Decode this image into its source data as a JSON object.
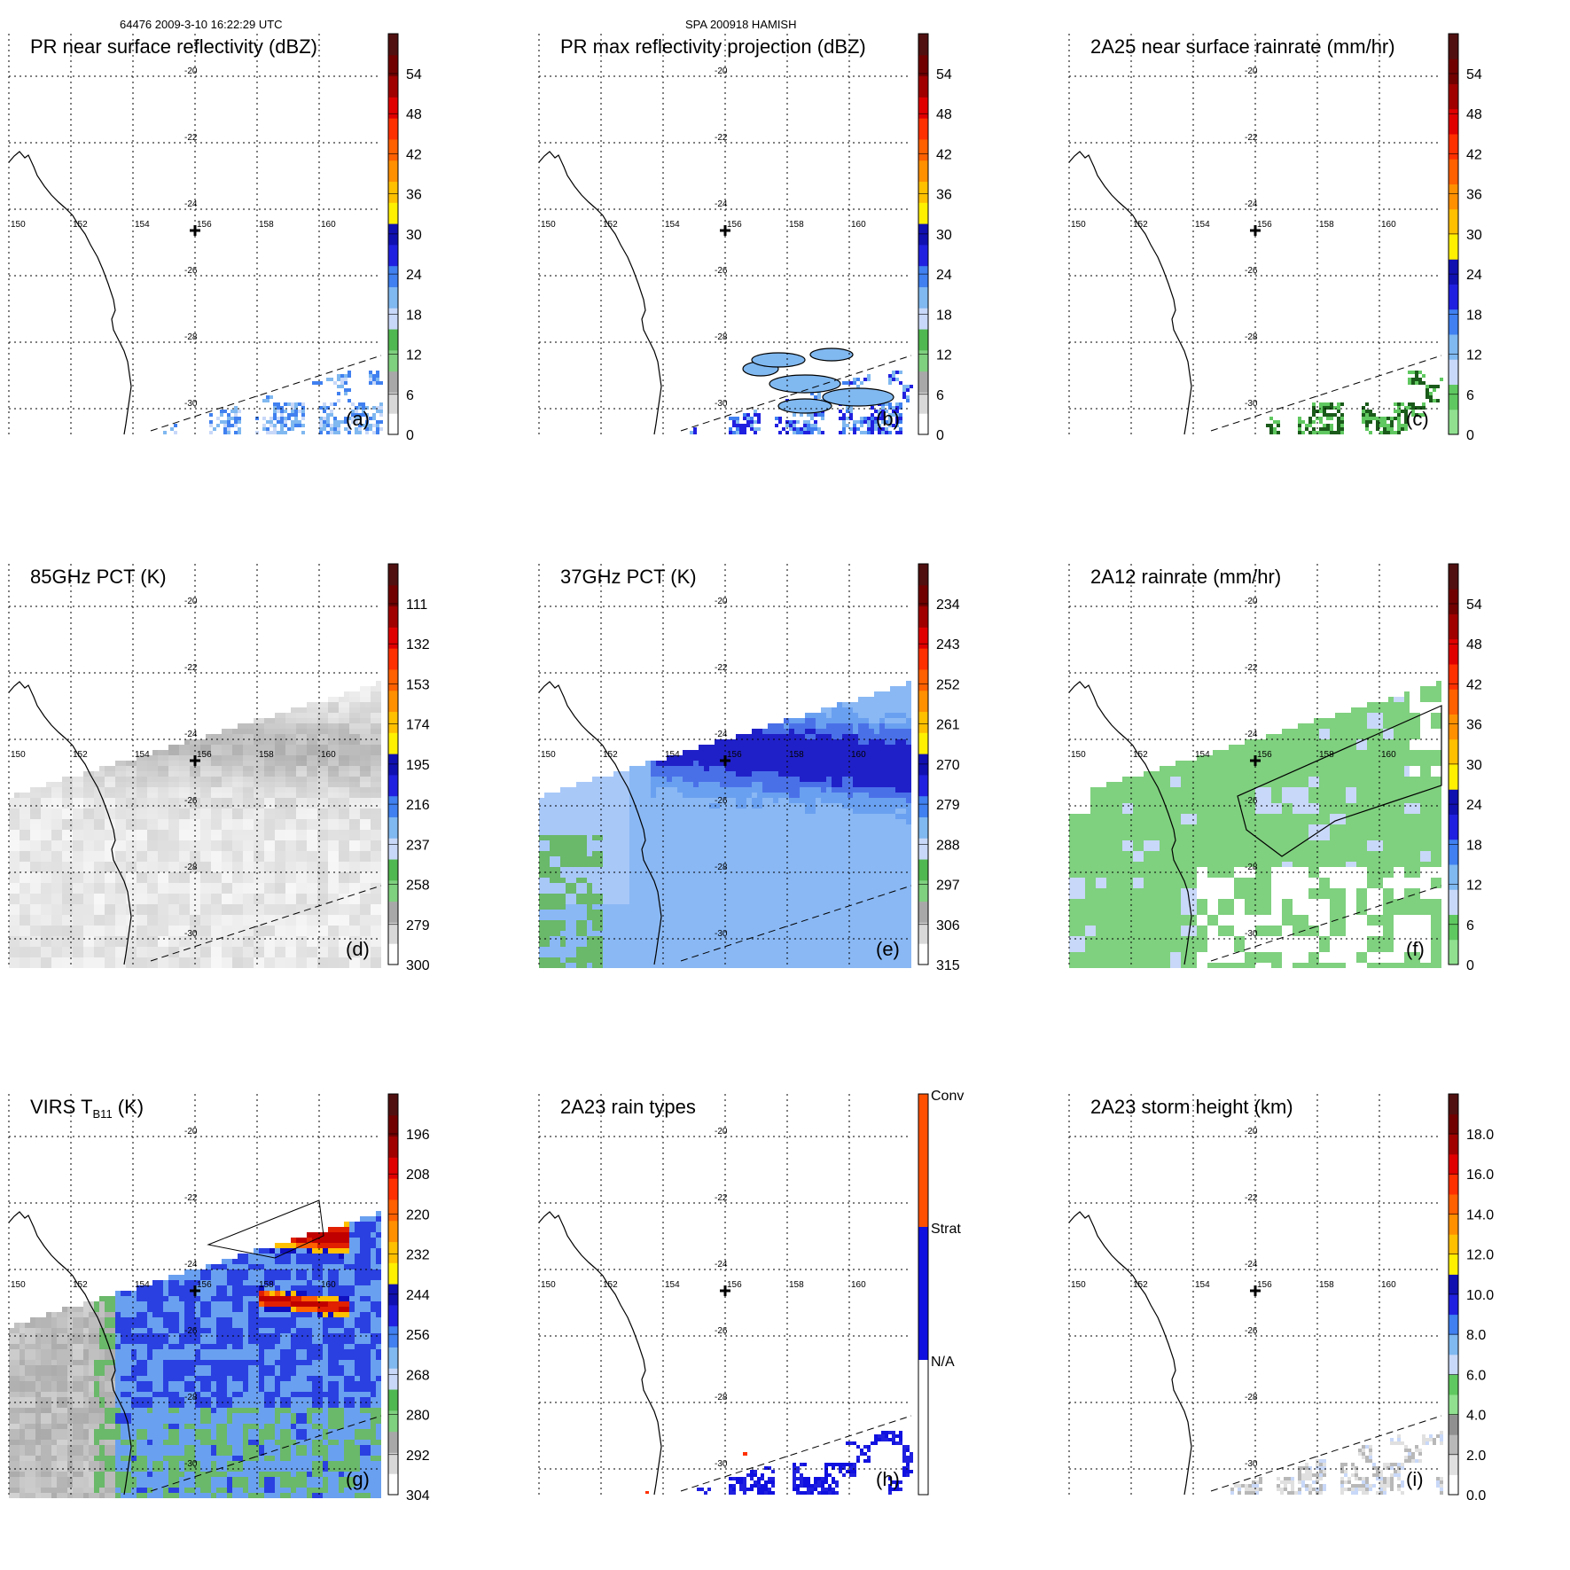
{
  "header": {
    "left": "64476 2009-3-10 16:22:29 UTC",
    "center": "SPA 200918 HAMISH"
  },
  "chart_data": [
    {
      "type": "heatmap",
      "id": "a",
      "title": "PR near surface reflectivity (dBZ)",
      "panel_label": "(a)",
      "colorbar_ticks": [
        "54",
        "48",
        "42",
        "36",
        "30",
        "24",
        "18",
        "12",
        "6",
        "0"
      ],
      "colorbar_scheme": "dbz",
      "lon_ticks": [
        "150",
        "152",
        "154",
        "156",
        "158",
        "160"
      ],
      "lat_ticks": [
        "-20",
        "-22",
        "-24",
        "-26",
        "-28",
        "-30"
      ],
      "field": "pr_sparse"
    },
    {
      "type": "heatmap",
      "id": "b",
      "title": "PR max reflectivity projection (dBZ)",
      "panel_label": "(b)",
      "colorbar_ticks": [
        "54",
        "48",
        "42",
        "36",
        "30",
        "24",
        "18",
        "12",
        "6",
        "0"
      ],
      "colorbar_scheme": "dbz",
      "lon_ticks": [
        "150",
        "152",
        "154",
        "156",
        "158",
        "160"
      ],
      "lat_ticks": [
        "-20",
        "-22",
        "-24",
        "-26",
        "-28",
        "-30"
      ],
      "field": "pr_max"
    },
    {
      "type": "heatmap",
      "id": "c",
      "title": "2A25 near surface rainrate (mm/hr)",
      "panel_label": "(c)",
      "colorbar_ticks": [
        "54",
        "48",
        "42",
        "36",
        "30",
        "24",
        "18",
        "12",
        "6",
        "0"
      ],
      "colorbar_scheme": "rain",
      "lon_ticks": [
        "150",
        "152",
        "154",
        "156",
        "158",
        "160"
      ],
      "lat_ticks": [
        "-20",
        "-22",
        "-24",
        "-26",
        "-28",
        "-30"
      ],
      "field": "rain_sparse"
    },
    {
      "type": "heatmap",
      "id": "d",
      "title": "85GHz PCT (K)",
      "panel_label": "(d)",
      "colorbar_ticks": [
        "111",
        "132",
        "153",
        "174",
        "195",
        "216",
        "237",
        "258",
        "279",
        "300"
      ],
      "colorbar_scheme": "dbz",
      "lon_ticks": [
        "150",
        "152",
        "154",
        "156",
        "158",
        "160"
      ],
      "lat_ticks": [
        "-20",
        "-22",
        "-24",
        "-26",
        "-28",
        "-30"
      ],
      "field": "pct85"
    },
    {
      "type": "heatmap",
      "id": "e",
      "title": "37GHz PCT (K)",
      "panel_label": "(e)",
      "colorbar_ticks": [
        "234",
        "243",
        "252",
        "261",
        "270",
        "279",
        "288",
        "297",
        "306",
        "315"
      ],
      "colorbar_scheme": "dbz",
      "lon_ticks": [
        "150",
        "152",
        "154",
        "156",
        "158",
        "160"
      ],
      "lat_ticks": [
        "-20",
        "-22",
        "-24",
        "-26",
        "-28",
        "-30"
      ],
      "field": "pct37"
    },
    {
      "type": "heatmap",
      "id": "f",
      "title": "2A12 rainrate (mm/hr)",
      "panel_label": "(f)",
      "colorbar_ticks": [
        "54",
        "48",
        "42",
        "36",
        "30",
        "24",
        "18",
        "12",
        "6",
        "0"
      ],
      "colorbar_scheme": "rain",
      "lon_ticks": [
        "150",
        "152",
        "154",
        "156",
        "158",
        "160"
      ],
      "lat_ticks": [
        "-20",
        "-22",
        "-24",
        "-26",
        "-28",
        "-30"
      ],
      "field": "rain2a12"
    },
    {
      "type": "heatmap",
      "id": "g",
      "title": "VIRS T",
      "title_subscript": "B11",
      "title_suffix": " (K)",
      "panel_label": "(g)",
      "colorbar_ticks": [
        "196",
        "208",
        "220",
        "232",
        "244",
        "256",
        "268",
        "280",
        "292",
        "304"
      ],
      "colorbar_scheme": "dbz",
      "lon_ticks": [
        "150",
        "152",
        "154",
        "156",
        "158",
        "160"
      ],
      "lat_ticks": [
        "-20",
        "-22",
        "-24",
        "-26",
        "-28",
        "-30"
      ],
      "field": "virs"
    },
    {
      "type": "heatmap",
      "id": "h",
      "title": "2A23 rain types",
      "panel_label": "(h)",
      "colorbar_ticks": [
        "Conv",
        "Strat",
        "N/A"
      ],
      "colorbar_scheme": "types",
      "lon_ticks": [
        "150",
        "152",
        "154",
        "156",
        "158",
        "160"
      ],
      "lat_ticks": [
        "-20",
        "-22",
        "-24",
        "-26",
        "-28",
        "-30"
      ],
      "field": "types"
    },
    {
      "type": "heatmap",
      "id": "i",
      "title": "2A23 storm height (km)",
      "panel_label": "(i)",
      "colorbar_ticks": [
        "18.0",
        "16.0",
        "14.0",
        "12.0",
        "10.0",
        "8.0",
        "6.0",
        "4.0",
        "2.0",
        "0.0"
      ],
      "colorbar_scheme": "height",
      "lon_ticks": [
        "150",
        "152",
        "154",
        "156",
        "158",
        "160"
      ],
      "lat_ticks": [
        "-20",
        "-22",
        "-24",
        "-26",
        "-28",
        "-30"
      ],
      "field": "height"
    }
  ]
}
